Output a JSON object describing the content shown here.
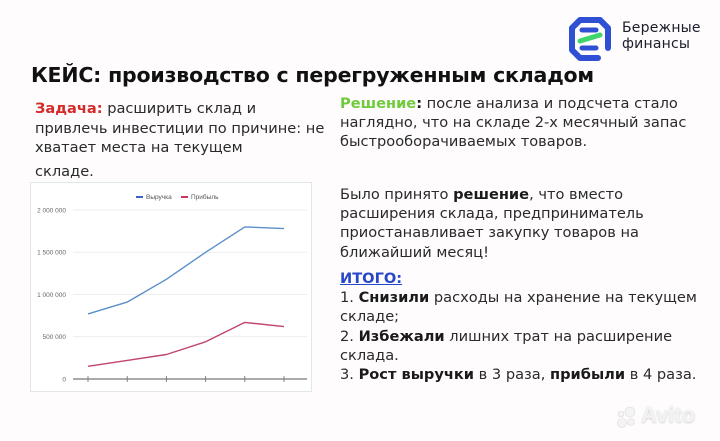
{
  "brand": {
    "name_line1": "Бережные",
    "name_line2": "финансы",
    "logo_icon": "hexagon-logo-icon",
    "colors": {
      "blue": "#2f4fd4",
      "green": "#3ed66a"
    }
  },
  "title": "КЕЙС: производство с перегруженным складом",
  "task": {
    "label": "Задача:",
    "text": " расширить склад и привлечь инвестиции по причине: не хватает места на текущем",
    "last_line": "складе."
  },
  "solution": {
    "label": "Решение",
    "colon": ":",
    "text": " после анализа и подсчета стало наглядно, что на складе 2-х месячный запас быстрооборачиваемых товаров."
  },
  "decision": {
    "pre": "Было принято ",
    "bold": "решение",
    "post": ", что вместо расширения склада, предприниматель приостанавливает  закупку товаров на ближайший месяц!"
  },
  "result": {
    "label": "ИТОГО:",
    "items": [
      {
        "num": "1. ",
        "bold": "Снизили",
        "text": " расходы на хранение на текущем складе;"
      },
      {
        "num": "2. ",
        "bold": "Избежали",
        "text": " лишних трат на расширение склада."
      },
      {
        "num": "3. ",
        "bold": "Рост выручки",
        "mid": " в 3 раза, ",
        "bold2": "прибыли",
        "text": " в 4 раза."
      }
    ]
  },
  "colors": {
    "task_label": "#d42a2a",
    "solution_label": "#6fcb3a",
    "result_label": "#2747c6"
  },
  "chart_data": {
    "type": "line",
    "title": "",
    "xlabel": "",
    "ylabel": "",
    "categories": [
      "1",
      "2",
      "3",
      "4",
      "5",
      "6"
    ],
    "x_tick_labels_visible": false,
    "series": [
      {
        "name": "Выручка",
        "color": "#5b8fc9",
        "values": [
          770000,
          910000,
          1180000,
          1500000,
          1800000,
          1780000
        ]
      },
      {
        "name": "Прибыль",
        "color": "#c2456b",
        "values": [
          150000,
          220000,
          290000,
          440000,
          670000,
          620000
        ]
      }
    ],
    "y_ticks": [
      "0",
      "500 000",
      "1 000 000",
      "1 500 000",
      "2 000 000"
    ],
    "ylim": [
      0,
      2000000
    ],
    "grid": true,
    "legend_position": "top"
  },
  "watermark": "Avito"
}
